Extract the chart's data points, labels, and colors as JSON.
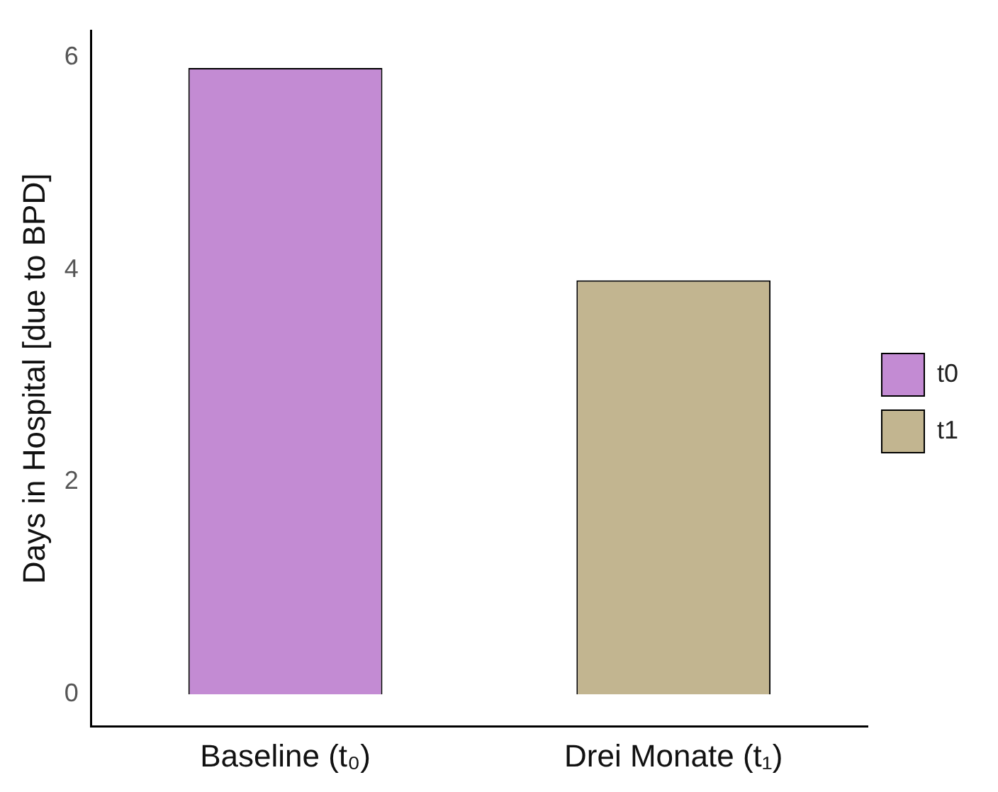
{
  "chart_data": {
    "type": "bar",
    "ylabel": "Days in Hospital [due to BPD]",
    "categories": [
      "Baseline (t₀)",
      "Drei Monate (t₁)"
    ],
    "series": [
      {
        "name": "t0",
        "color": "#c38bd3",
        "values": [
          5.9,
          null
        ]
      },
      {
        "name": "t1",
        "color": "#c2b590",
        "values": [
          null,
          3.9
        ]
      }
    ],
    "ylim": [
      -0.3,
      6.25
    ],
    "yticks": [
      0,
      2,
      4,
      6
    ],
    "grid": false,
    "legend": "right"
  }
}
